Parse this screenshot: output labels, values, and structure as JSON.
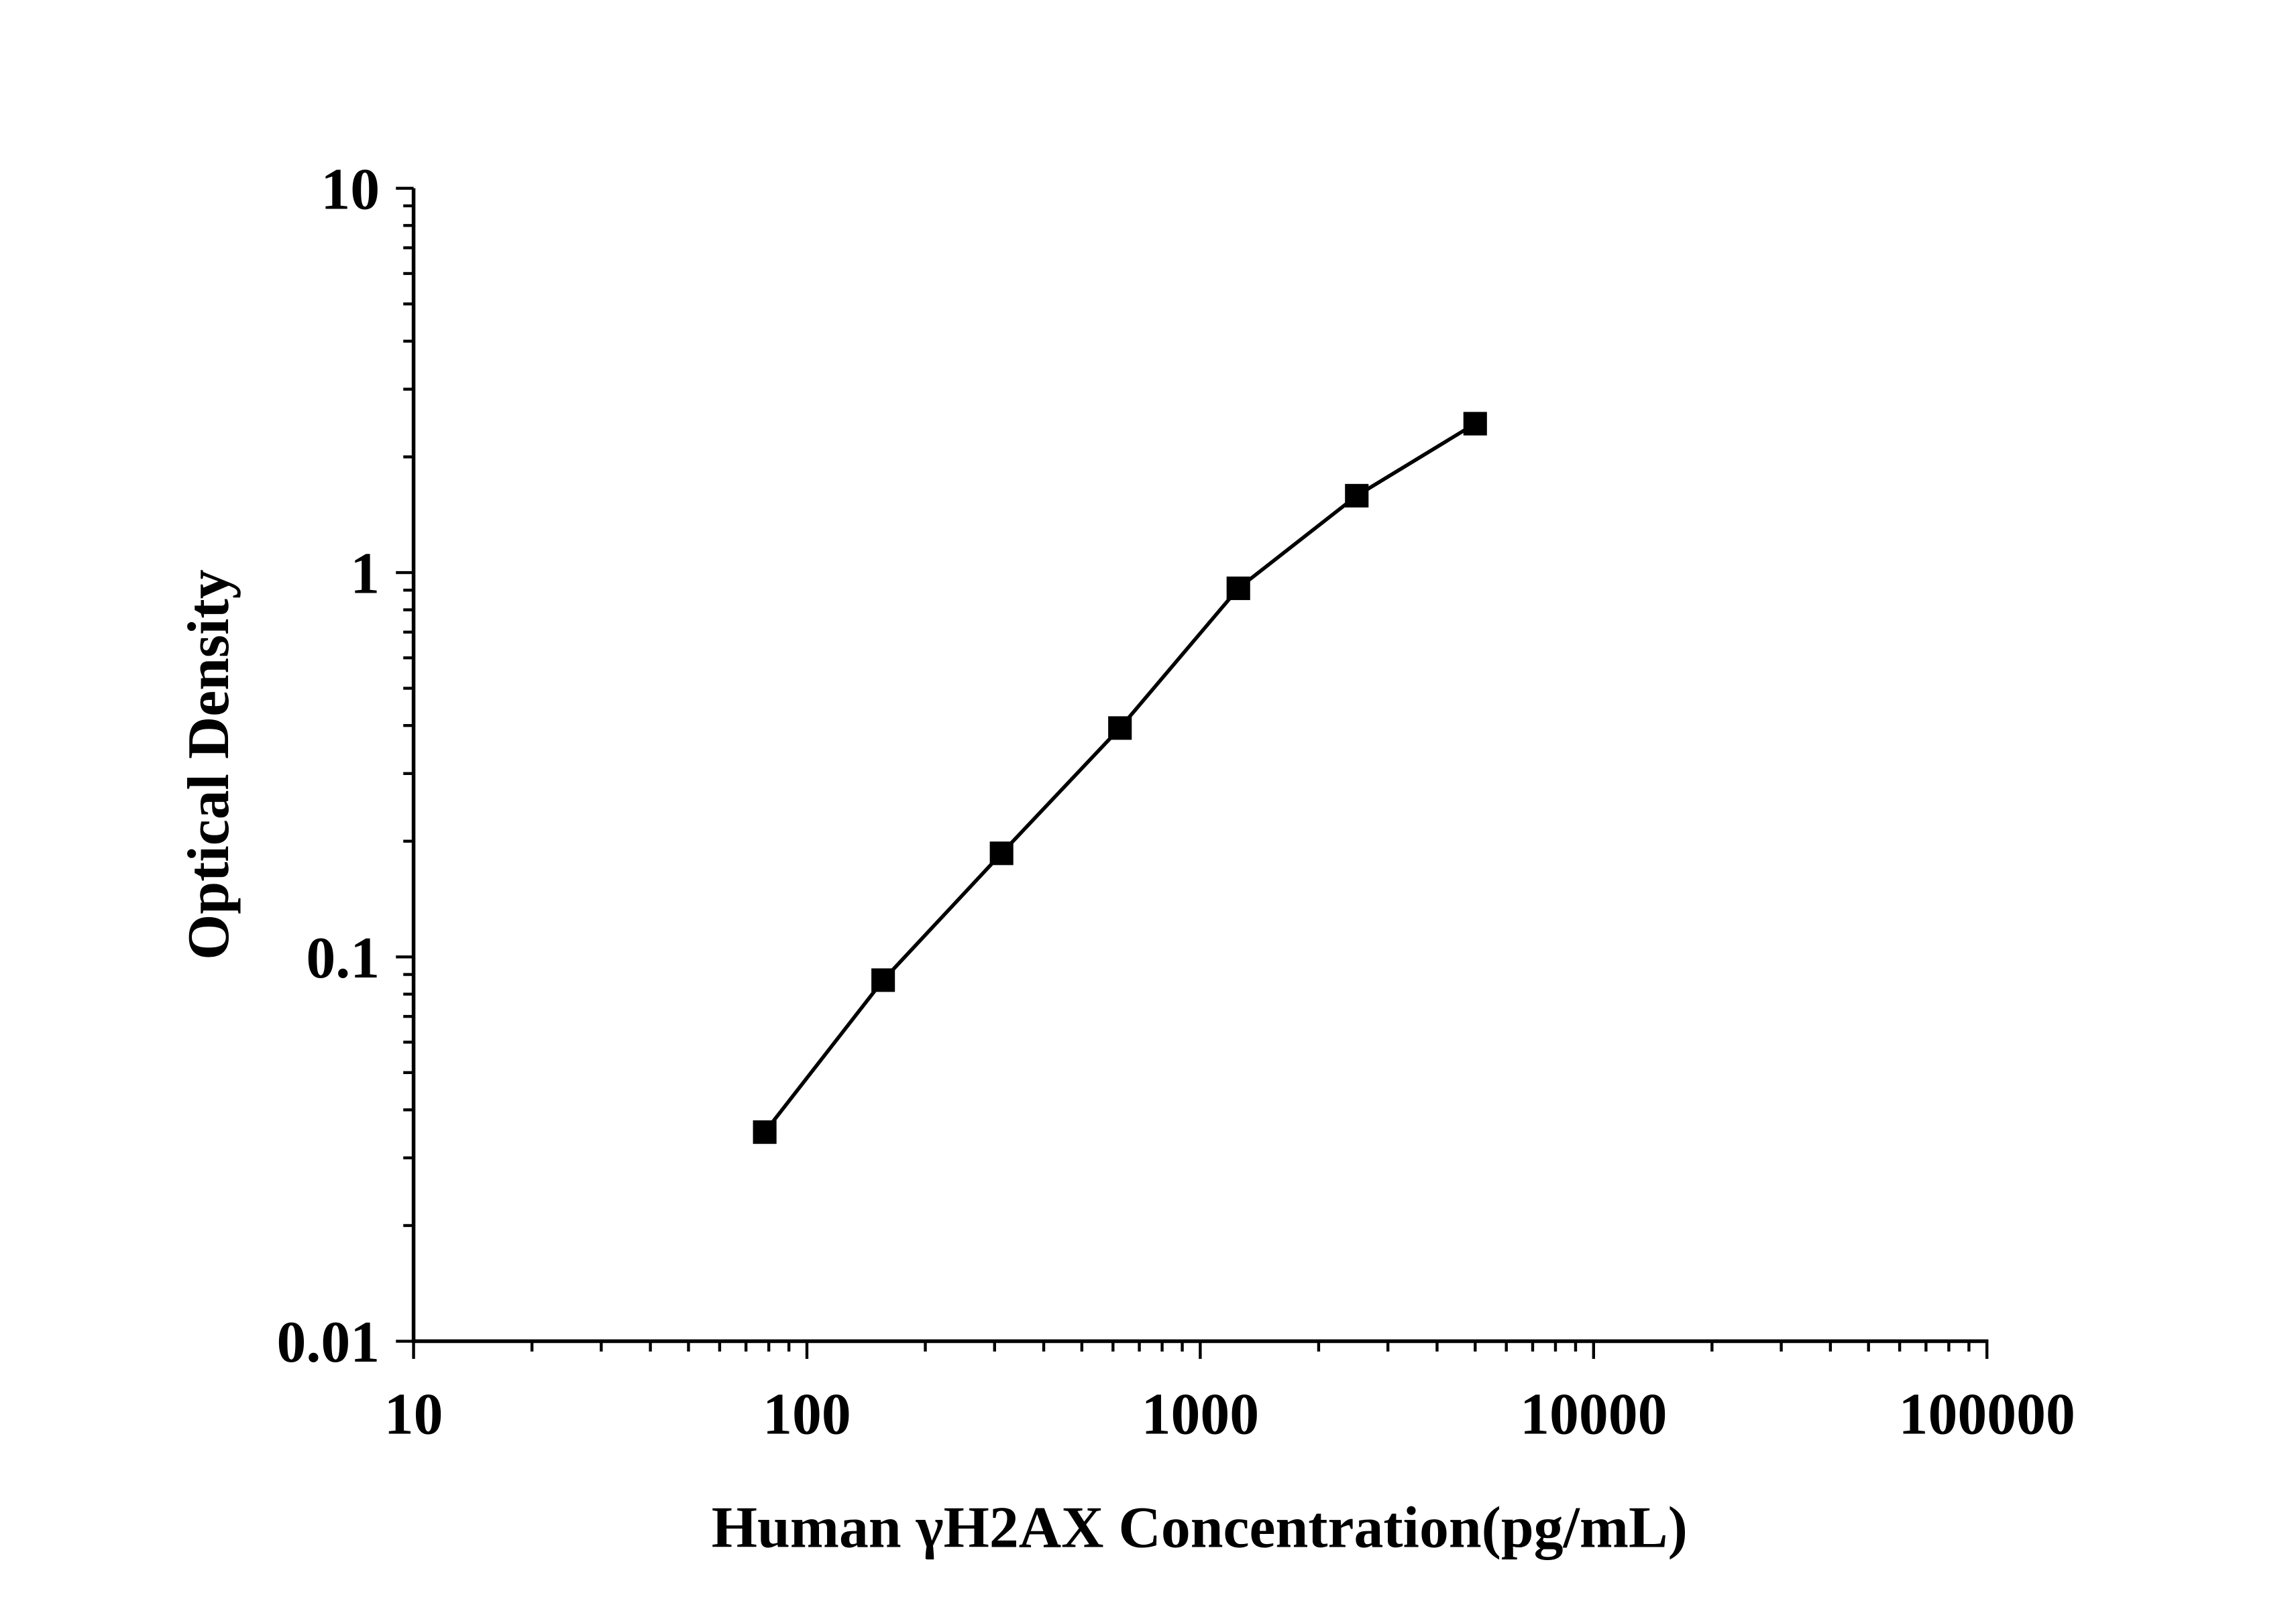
{
  "chart_data": {
    "type": "line",
    "title": "",
    "xlabel": "Human γH2AX Concentration(pg/mL)",
    "ylabel": "Optical Density",
    "xscale": "log",
    "yscale": "log",
    "xlim": [
      10,
      100000
    ],
    "ylim": [
      0.01,
      10
    ],
    "xticks": [
      "10",
      "100",
      "1000",
      "10000",
      "100000"
    ],
    "yticks": [
      "0.01",
      "0.1",
      "1",
      "10"
    ],
    "grid": false,
    "marker": "square",
    "color": "#000000",
    "series": [
      {
        "x": [
          78.125,
          156.25,
          312.5,
          625,
          1250,
          2500,
          5000
        ],
        "y": [
          0.035,
          0.087,
          0.186,
          0.394,
          0.91,
          1.585,
          2.44
        ]
      }
    ]
  }
}
